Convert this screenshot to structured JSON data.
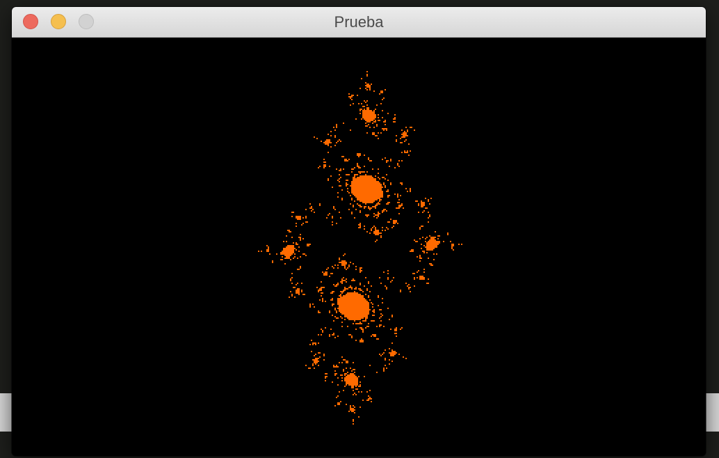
{
  "window": {
    "title": "Prueba"
  }
}
